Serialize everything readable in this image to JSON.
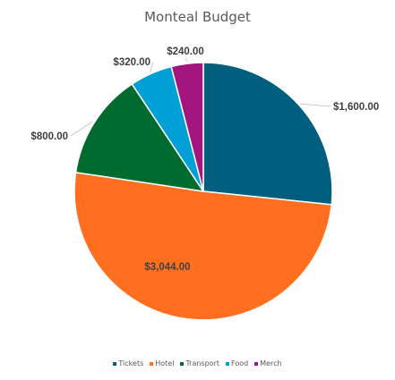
{
  "chart_data": {
    "type": "pie",
    "title": "Monteal Budget",
    "categories": [
      "Tickets",
      "Hotel",
      "Transport",
      "Food",
      "Merch"
    ],
    "values": [
      1600,
      3044,
      800,
      320,
      240
    ],
    "data_labels": [
      "$1,600.00",
      "$3,044.00",
      "$800.00",
      "$320.00",
      "$240.00"
    ],
    "colors": [
      "#005F7F",
      "#FF6F1F",
      "#006B2E",
      "#009FD6",
      "#A3157F"
    ],
    "start_angle_deg": 0,
    "direction": "clockwise",
    "legend_position": "bottom"
  }
}
